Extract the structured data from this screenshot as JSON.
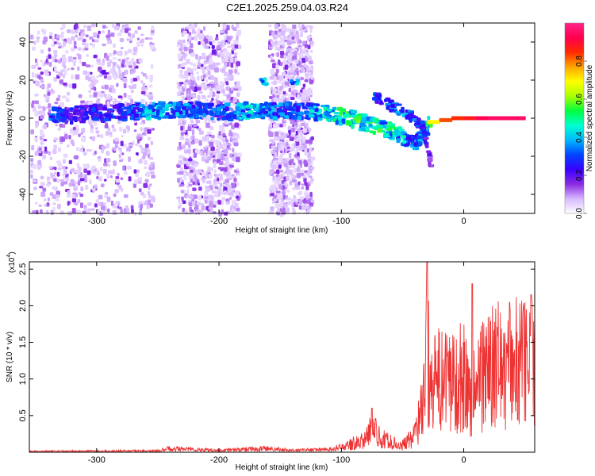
{
  "title": "C2E1.2025.259.04.03.R24",
  "chart_data": [
    {
      "type": "heatmap",
      "name": "spectrogram",
      "xlabel": "Height of straight line (km)",
      "ylabel": "Frequency (Hz)",
      "xlim": [
        -355,
        58
      ],
      "ylim": [
        -50,
        50
      ],
      "xticks": [
        -300,
        -200,
        -100,
        0
      ],
      "yticks": [
        -40,
        -20,
        0,
        20,
        40
      ],
      "colorbar": {
        "label": "Normalized spectral amplitude",
        "range": [
          0,
          1
        ],
        "ticks": [
          0.0,
          0.2,
          0.4,
          0.6,
          0.8
        ],
        "colormap": [
          "#ffffff",
          "#d6b8ff",
          "#8a2be2",
          "#3a00ff",
          "#0044ff",
          "#00b7ff",
          "#00ffd0",
          "#00ff40",
          "#aaff00",
          "#ffff00",
          "#ffa500",
          "#ff2a00",
          "#ff0050",
          "#ff2288"
        ]
      },
      "ridge": [
        {
          "x": -340,
          "f": 2,
          "amp": 0.35
        },
        {
          "x": -320,
          "f": 3,
          "amp": 0.25
        },
        {
          "x": -300,
          "f": 4,
          "amp": 0.3
        },
        {
          "x": -280,
          "f": 4,
          "amp": 0.3
        },
        {
          "x": -260,
          "f": 5,
          "amp": 0.45
        },
        {
          "x": -240,
          "f": 5,
          "amp": 0.4
        },
        {
          "x": -220,
          "f": 5,
          "amp": 0.35
        },
        {
          "x": -200,
          "f": 4,
          "amp": 0.35
        },
        {
          "x": -180,
          "f": 5,
          "amp": 0.45
        },
        {
          "x": -160,
          "f": 5,
          "amp": 0.4
        },
        {
          "x": -140,
          "f": 5,
          "amp": 0.35
        },
        {
          "x": -120,
          "f": 4,
          "amp": 0.45
        },
        {
          "x": -100,
          "f": 2,
          "amp": 0.55
        },
        {
          "x": -80,
          "f": -2,
          "amp": 0.55
        },
        {
          "x": -60,
          "f": -6,
          "amp": 0.5
        },
        {
          "x": -40,
          "f": -12,
          "amp": 0.35
        },
        {
          "x": -30,
          "f": -2,
          "amp": 0.6
        },
        {
          "x": -20,
          "f": -1,
          "amp": 0.8
        },
        {
          "x": -10,
          "f": 0,
          "amp": 0.85
        },
        {
          "x": 0,
          "f": 0,
          "amp": 0.85
        },
        {
          "x": 10,
          "f": 0,
          "amp": 0.9
        },
        {
          "x": 20,
          "f": 0,
          "amp": 0.95
        },
        {
          "x": 30,
          "f": 0,
          "amp": 0.95
        },
        {
          "x": 40,
          "f": 0,
          "amp": 0.95
        },
        {
          "x": 50,
          "f": 0,
          "amp": 0.95
        }
      ],
      "branch": [
        {
          "x": -75,
          "f": 12,
          "amp": 0.3
        },
        {
          "x": -60,
          "f": 7,
          "amp": 0.35
        },
        {
          "x": -45,
          "f": 2,
          "amp": 0.4
        },
        {
          "x": -35,
          "f": -4,
          "amp": 0.3
        },
        {
          "x": -28,
          "f": -25,
          "amp": 0.15
        }
      ],
      "spots": [
        {
          "x": -165,
          "f": 20,
          "amp": 0.45
        },
        {
          "x": -140,
          "f": 20,
          "amp": 0.45
        }
      ],
      "noise_bands": [
        {
          "from": -355,
          "to": -255
        },
        {
          "from": -235,
          "to": -185
        },
        {
          "from": -160,
          "to": -125
        }
      ]
    },
    {
      "type": "line",
      "name": "snr",
      "xlabel": "Height of straight line (km)",
      "ylabel": "SNR (10 * v/v)",
      "scale_label": "(x10",
      "scale_exp": "4",
      "scale_close": ")",
      "xlim": [
        -355,
        58
      ],
      "ylim": [
        0,
        2.6
      ],
      "xticks": [
        -300,
        -200,
        -100,
        0
      ],
      "yticks": [
        0.5,
        1.0,
        1.5,
        2.0,
        2.5
      ],
      "ytick_labels": [
        "0.5",
        "1.0",
        "1.5",
        "2.0",
        "2.5"
      ],
      "color": "#ee3333",
      "envelope": [
        {
          "x": -355,
          "y": 0.02
        },
        {
          "x": -250,
          "y": 0.03
        },
        {
          "x": -240,
          "y": 0.08
        },
        {
          "x": -220,
          "y": 0.06
        },
        {
          "x": -200,
          "y": 0.04
        },
        {
          "x": -160,
          "y": 0.08
        },
        {
          "x": -140,
          "y": 0.04
        },
        {
          "x": -110,
          "y": 0.06
        },
        {
          "x": -100,
          "y": 0.1
        },
        {
          "x": -90,
          "y": 0.2
        },
        {
          "x": -80,
          "y": 0.28
        },
        {
          "x": -75,
          "y": 0.55
        },
        {
          "x": -70,
          "y": 0.35
        },
        {
          "x": -60,
          "y": 0.22
        },
        {
          "x": -50,
          "y": 0.15
        },
        {
          "x": -40,
          "y": 0.35
        },
        {
          "x": -36,
          "y": 0.8
        },
        {
          "x": -33,
          "y": 1.2
        },
        {
          "x": -30,
          "y": 2.2
        },
        {
          "x": -25,
          "y": 1.4
        },
        {
          "x": -20,
          "y": 1.6
        },
        {
          "x": -15,
          "y": 1.5
        },
        {
          "x": -10,
          "y": 1.55
        },
        {
          "x": -5,
          "y": 1.65
        },
        {
          "x": 0,
          "y": 1.7
        },
        {
          "x": 5,
          "y": 1.1
        },
        {
          "x": 10,
          "y": 1.55
        },
        {
          "x": 15,
          "y": 1.7
        },
        {
          "x": 20,
          "y": 1.8
        },
        {
          "x": 25,
          "y": 1.85
        },
        {
          "x": 30,
          "y": 1.9
        },
        {
          "x": 40,
          "y": 1.95
        },
        {
          "x": 50,
          "y": 1.98
        },
        {
          "x": 58,
          "y": 2.0
        }
      ],
      "peaks": [
        {
          "x": -75,
          "y": 0.6
        },
        {
          "x": -30,
          "y": 2.6
        },
        {
          "x": 7,
          "y": 2.3
        },
        {
          "x": 55,
          "y": 2.15
        }
      ]
    }
  ]
}
